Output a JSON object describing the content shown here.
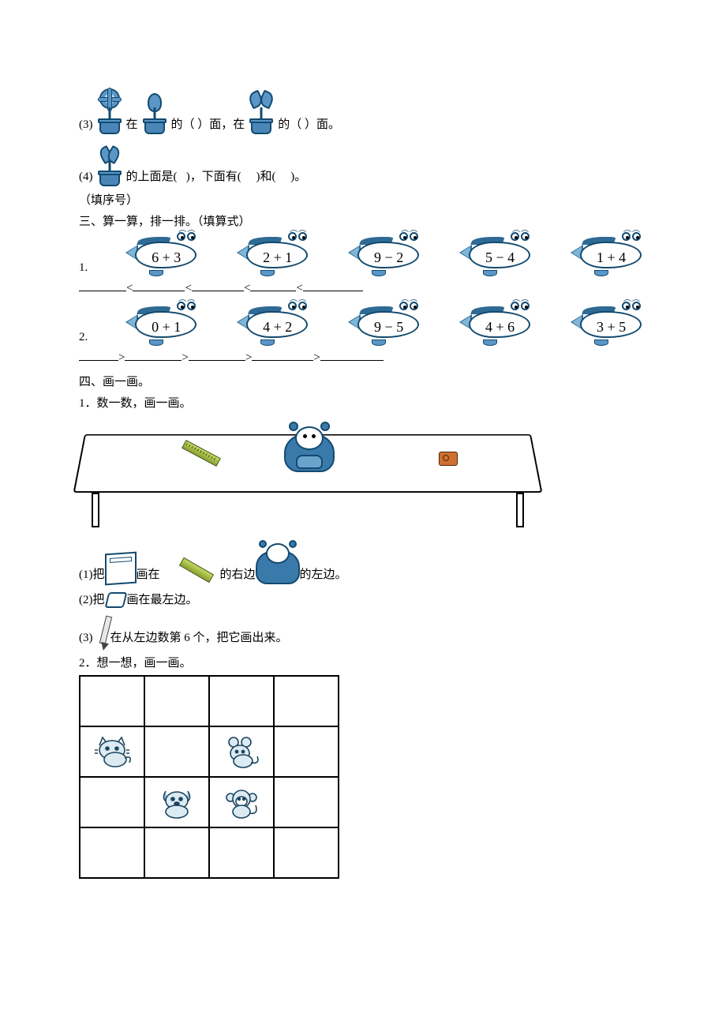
{
  "colors": {
    "ink": "#000000",
    "blue_dark": "#134a6f",
    "blue_mid": "#3a7aab",
    "blue_light": "#7fb5d6",
    "bg": "#ffffff"
  },
  "q3": {
    "num": "(3)",
    "t1": "在",
    "t2": "的（ ）面，在",
    "t3": "的（ ）面。"
  },
  "q4": {
    "num": "(4)",
    "t1": "的上面是(   )，下面有(     )和(     )。",
    "note": "（填序号）"
  },
  "sec3": {
    "title": "三、算一算，排一排。（填算式）",
    "row1_num": "1.",
    "row1": [
      "6 + 3",
      "2 + 1",
      "9 − 2",
      "5 − 4",
      "1 + 4"
    ],
    "row1_rel": "<",
    "row2_num": "2.",
    "row2": [
      "0 + 1",
      "4 + 2",
      "9 − 5",
      "4 + 6",
      "3 + 5"
    ],
    "row2_rel": ">",
    "blank_widths": [
      60,
      66,
      66,
      58,
      76
    ],
    "blank_widths2": [
      50,
      72,
      72,
      78,
      80
    ]
  },
  "sec4": {
    "title": "四、画一画。",
    "p1": "1．数一数，画一画。",
    "s1a": "(1)把",
    "s1b": "画在",
    "s1c": "的右边",
    "s1d": "的左边。",
    "s2a": "(2)把",
    "s2b": "画在最左边。",
    "s3a": "(3)",
    "s3b": "在从左边数第 6 个，把它画出来。",
    "p2": "2．想一想，画一画。"
  },
  "grid": {
    "cells": [
      "",
      "",
      "",
      "",
      "cat",
      "",
      "mouse",
      "",
      "",
      "dog",
      "monkey",
      "",
      "",
      "",
      "",
      ""
    ]
  }
}
